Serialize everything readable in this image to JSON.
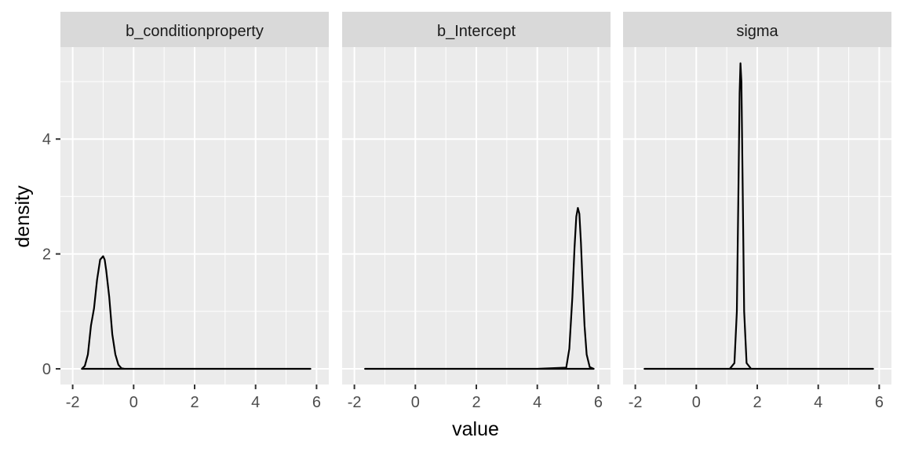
{
  "chart_data": {
    "type": "line",
    "layout": "facet_wrap",
    "xlabel": "value",
    "ylabel": "density",
    "xlim": [
      -2,
      6
    ],
    "ylim": [
      0,
      5.5
    ],
    "x_ticks": [
      -2,
      0,
      2,
      4,
      6
    ],
    "x_tick_labels": [
      "-2",
      "0",
      "2",
      "4",
      "6"
    ],
    "y_ticks": [
      0,
      2,
      4
    ],
    "y_tick_labels": [
      "0",
      "2",
      "4"
    ],
    "grid": true,
    "colors": {
      "panel_background": "#ebebeb",
      "grid": "#ffffff",
      "strip_background": "#d9d9d9",
      "line": "#000000"
    },
    "panels": [
      {
        "title": "b_conditionproperty",
        "x": [
          -1.7,
          -1.6,
          -1.5,
          -1.4,
          -1.3,
          -1.2,
          -1.1,
          -1.0,
          -0.95,
          -0.9,
          -0.8,
          -0.7,
          -0.6,
          -0.5,
          -0.4,
          -0.3,
          0,
          1,
          2,
          3,
          4,
          5,
          5.8
        ],
        "y": [
          0.0,
          0.05,
          0.25,
          0.75,
          1.05,
          1.55,
          1.9,
          1.96,
          1.9,
          1.72,
          1.25,
          0.6,
          0.25,
          0.07,
          0.01,
          0,
          0,
          0,
          0,
          0,
          0,
          0,
          0
        ]
      },
      {
        "title": "b_Intercept",
        "x": [
          -1.65,
          0,
          2,
          4,
          4.95,
          5.05,
          5.15,
          5.22,
          5.28,
          5.33,
          5.38,
          5.43,
          5.48,
          5.55,
          5.62,
          5.72,
          5.85
        ],
        "y": [
          0,
          0,
          0,
          0,
          0.02,
          0.35,
          1.25,
          2.1,
          2.65,
          2.8,
          2.7,
          2.2,
          1.55,
          0.75,
          0.25,
          0.03,
          0
        ]
      },
      {
        "title": "sigma",
        "x": [
          -1.7,
          0,
          1.1,
          1.25,
          1.33,
          1.38,
          1.42,
          1.45,
          1.48,
          1.52,
          1.57,
          1.65,
          1.8,
          3,
          4,
          5,
          5.8
        ],
        "y": [
          0,
          0,
          0,
          0.1,
          1.0,
          3.0,
          4.8,
          5.32,
          5.0,
          3.2,
          1.0,
          0.1,
          0,
          0,
          0,
          0,
          0
        ]
      }
    ]
  }
}
